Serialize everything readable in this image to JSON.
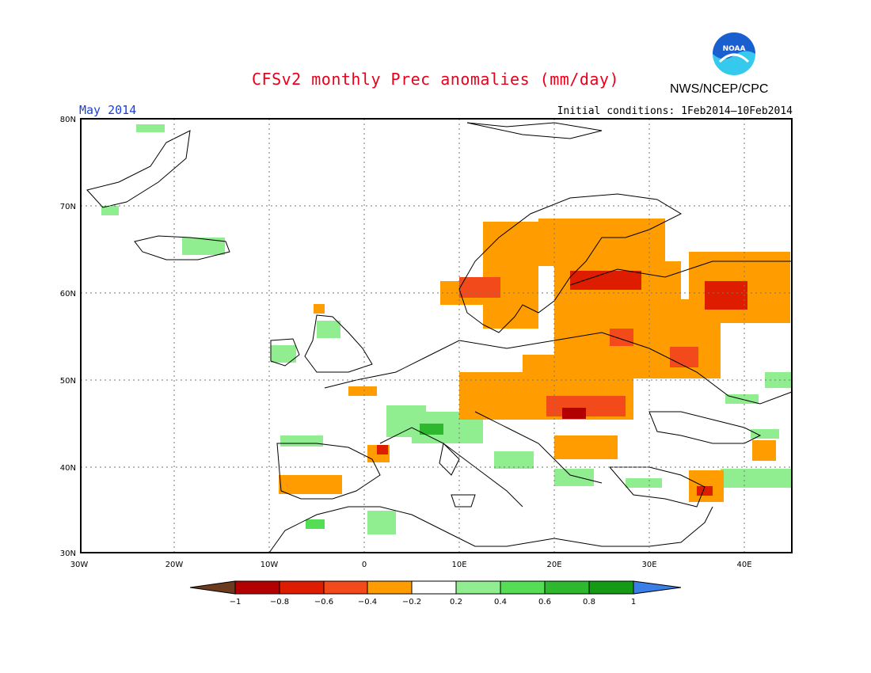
{
  "header": {
    "title": "CFSv2 monthly Prec anomalies (mm/day)",
    "agency": "NWS/NCEP/CPC",
    "logo_text": "NOAA",
    "period": "May 2014",
    "initial_conditions": "Initial conditions: 1Feb2014–10Feb2014"
  },
  "map": {
    "lat_labels": [
      "80N",
      "70N",
      "60N",
      "50N",
      "40N",
      "30N"
    ],
    "lon_labels": [
      "30W",
      "20W",
      "10W",
      "0",
      "10E",
      "20E",
      "30E",
      "40E"
    ]
  },
  "legend": {
    "labels": [
      "−1",
      "−0.8",
      "−0.6",
      "−0.4",
      "−0.2",
      "0.2",
      "0.4",
      "0.6",
      "0.8",
      "1"
    ],
    "colors": [
      "#6b3a1f",
      "#b30000",
      "#dd1c00",
      "#f24a1a",
      "#ff9d00",
      "#ffffff",
      "#90ee90",
      "#55dd55",
      "#2db82d",
      "#159a15",
      "#3a7fe8"
    ]
  },
  "colors": {
    "title": "#e8001c",
    "period": "#1a3fe0",
    "noaa_blue": "#1a5fd0",
    "noaa_cyan": "#36c9ee"
  }
}
